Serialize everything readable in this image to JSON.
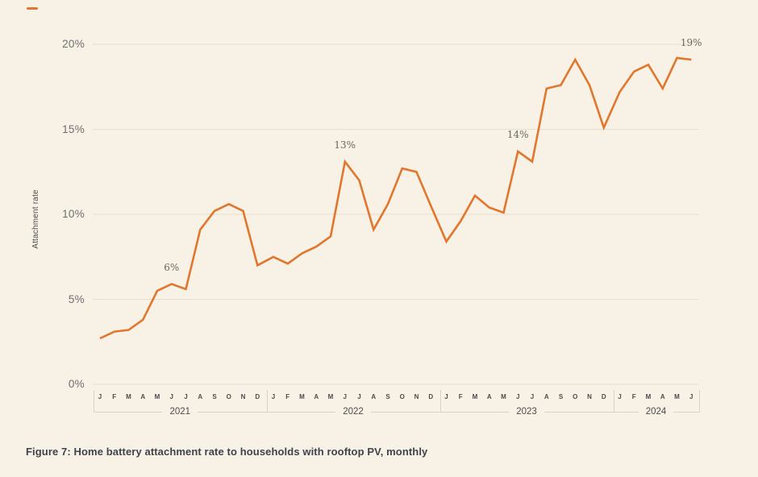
{
  "caption": "Figure 7: Home battery attachment rate to households with rooftop PV, monthly",
  "decoration": {
    "brand_dash_color": "#e2762c"
  },
  "colors": {
    "background": "#f8f1e6",
    "line": "#e2762c",
    "gridline": "#e5ddcd",
    "axis_bracket": "#d9d2c2"
  },
  "chart_data": {
    "type": "line",
    "title": "",
    "ylabel": "Attachment rate",
    "ylim": [
      0,
      20
    ],
    "grid": "horizontal",
    "legend": "none",
    "y_ticks": [
      {
        "label": "0%",
        "value": 0
      },
      {
        "label": "5%",
        "value": 5
      },
      {
        "label": "10%",
        "value": 10
      },
      {
        "label": "15%",
        "value": 15
      },
      {
        "label": "20%",
        "value": 20
      }
    ],
    "x_axis": {
      "month_letters": [
        "J",
        "F",
        "M",
        "A",
        "M",
        "J",
        "J",
        "A",
        "S",
        "O",
        "N",
        "D"
      ],
      "years": [
        "2021",
        "2022",
        "2023",
        "2024"
      ],
      "months_per_year": [
        12,
        12,
        12,
        6
      ]
    },
    "series": [
      {
        "name": "Attachment rate (monthly)",
        "color": "#e2762c",
        "values_pct": [
          2.7,
          3.1,
          3.2,
          3.8,
          5.5,
          5.9,
          5.6,
          9.1,
          10.2,
          10.6,
          10.2,
          7.0,
          7.5,
          7.1,
          7.7,
          8.1,
          8.7,
          13.1,
          12.0,
          9.1,
          10.6,
          12.7,
          12.5,
          10.5,
          8.4,
          9.6,
          11.1,
          10.4,
          10.1,
          13.7,
          13.1,
          17.4,
          17.6,
          19.1,
          17.6,
          15.1,
          17.2,
          18.4,
          18.8,
          17.4,
          19.2,
          19.1
        ]
      }
    ],
    "annotations": [
      {
        "text": "6%",
        "year": "2021",
        "month_index": 5,
        "flat_index": 5
      },
      {
        "text": "13%",
        "year": "2022",
        "month_index": 5,
        "flat_index": 17
      },
      {
        "text": "14%",
        "year": "2023",
        "month_index": 5,
        "flat_index": 29
      },
      {
        "text": "19%",
        "year": "2024",
        "month_index": 5,
        "flat_index": 41
      }
    ]
  }
}
